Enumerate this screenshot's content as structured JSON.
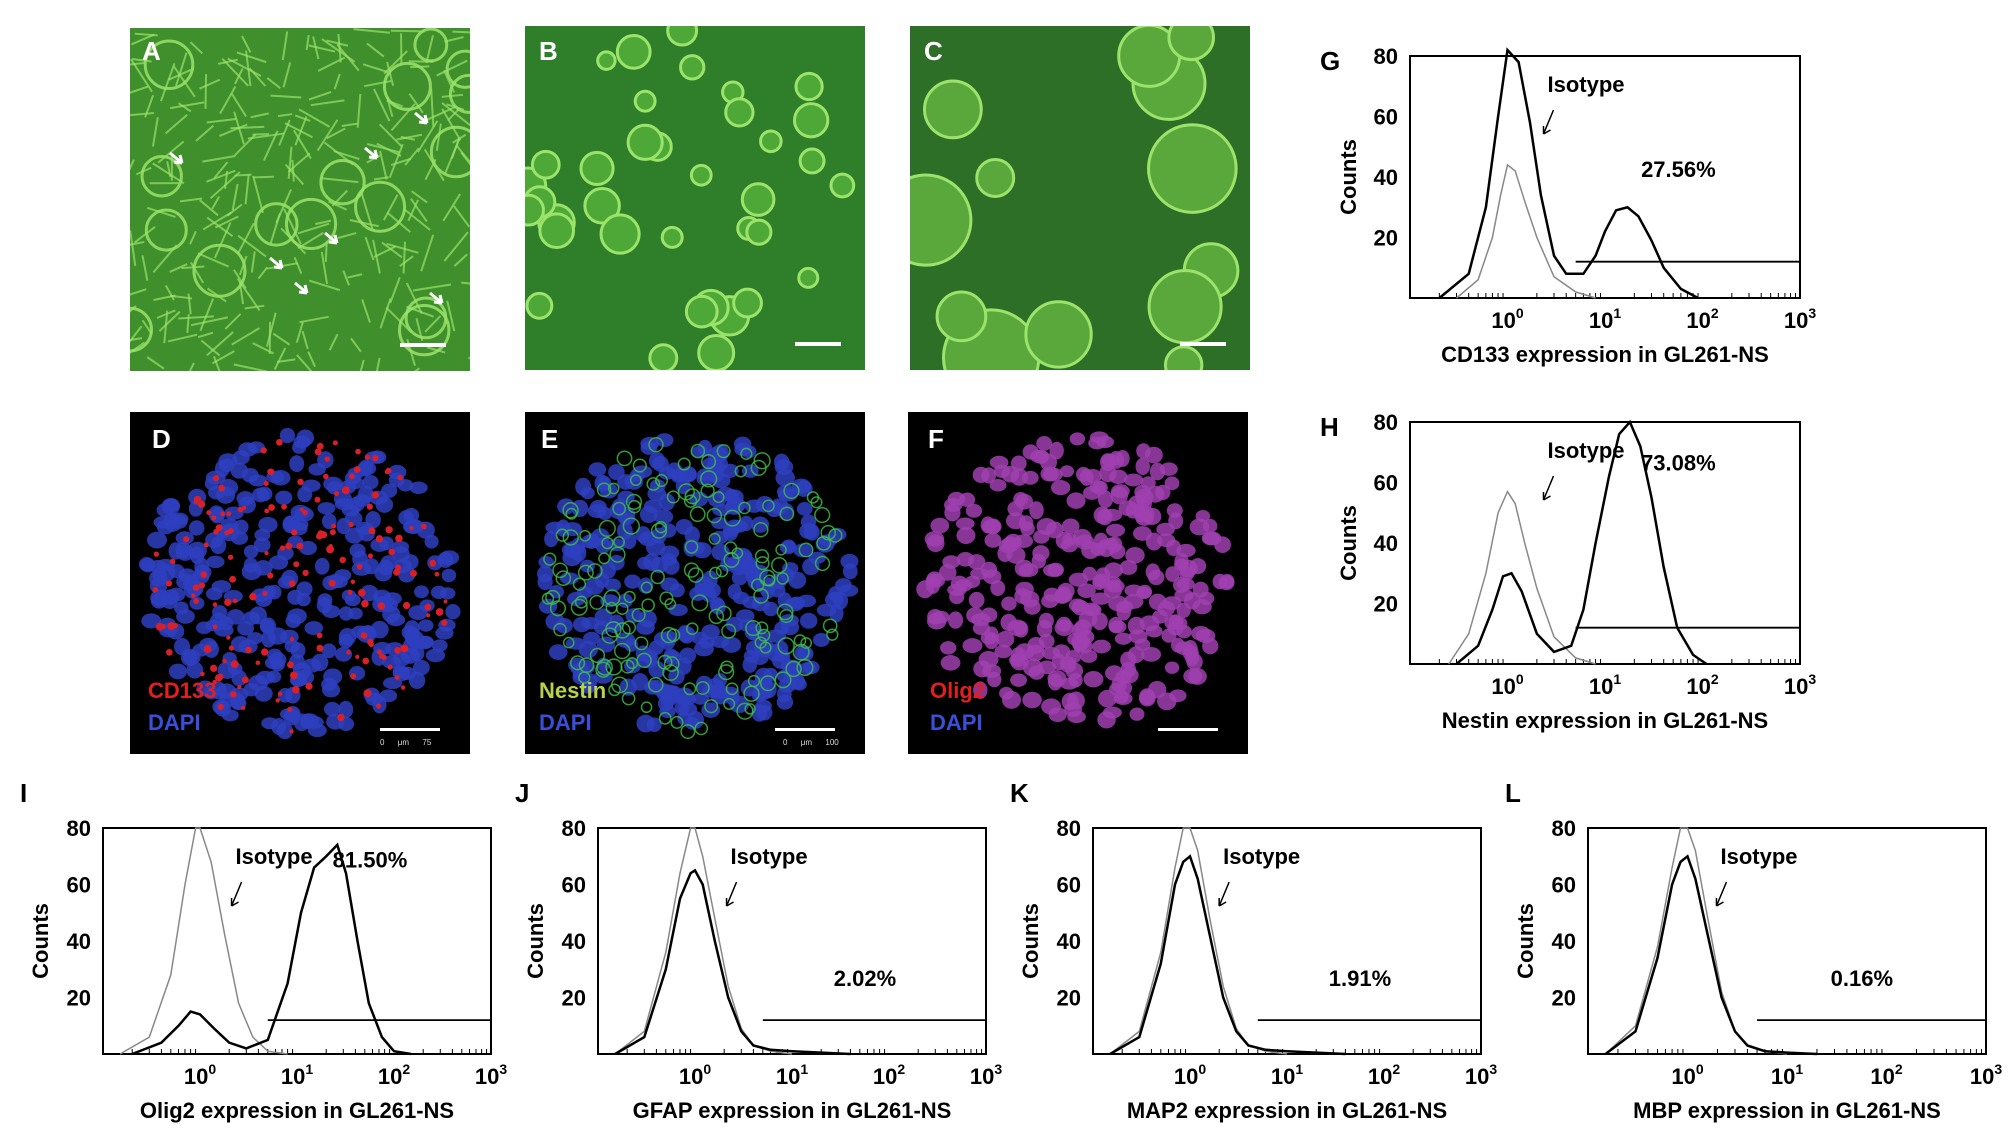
{
  "figure": {
    "micro_panels": [
      {
        "id": "A",
        "label": "A",
        "kind": "phase",
        "bg": "#3f8f2c",
        "stains": []
      },
      {
        "id": "B",
        "label": "B",
        "kind": "phase",
        "bg": "#2f7f2a",
        "stains": []
      },
      {
        "id": "C",
        "label": "C",
        "kind": "phase",
        "bg": "#2e6f27",
        "stains": []
      },
      {
        "id": "D",
        "label": "D",
        "kind": "fluor",
        "bg": "#000000",
        "stains": [
          {
            "text": "CD133",
            "color": "#e02020"
          },
          {
            "text": "DAPI",
            "color": "#3a4fd8"
          }
        ],
        "scale_text": "0      μm      75"
      },
      {
        "id": "E",
        "label": "E",
        "kind": "fluor",
        "bg": "#000000",
        "stains": [
          {
            "text": "Nestin",
            "color": "#b9d04a"
          },
          {
            "text": "DAPI",
            "color": "#3a4fd8"
          }
        ],
        "scale_text": "0      μm      100"
      },
      {
        "id": "F",
        "label": "F",
        "kind": "fluor",
        "bg": "#000000",
        "stains": [
          {
            "text": "Olig2",
            "color": "#e02020"
          },
          {
            "text": "DAPI",
            "color": "#3a4fd8"
          }
        ]
      }
    ],
    "colors": {
      "phase_cell": "#9be36a",
      "dapi": "#2e3fc0",
      "cd133": "#d8202a",
      "nestin": "#3fc04a",
      "olig2": "#a040b0",
      "marker_line": "#000000",
      "isotype_line": "#888888"
    }
  },
  "chart_data": [
    {
      "id": "G",
      "label": "G",
      "type": "line",
      "xlabel": "CD133 expression in GL261-NS",
      "ylabel": "Counts",
      "x_scale": "log",
      "xlim": [
        0.1,
        1000
      ],
      "ylim": [
        0,
        80
      ],
      "yticks": [
        "20",
        "40",
        "60",
        "80"
      ],
      "xtick_bases": [
        "10",
        "10",
        "10",
        "10"
      ],
      "xtick_exps": [
        "0",
        "1",
        "2",
        "3"
      ],
      "annotation": "Isotype",
      "percent": "27.56%",
      "gate": [
        5,
        1000
      ],
      "gate_y": 12,
      "isotype": {
        "x": [
          0.3,
          0.5,
          0.7,
          0.85,
          1.0,
          1.2,
          1.5,
          2.0,
          3.0,
          5.0,
          8.0
        ],
        "y": [
          0,
          6,
          20,
          34,
          44,
          42,
          32,
          20,
          7,
          2,
          0
        ]
      },
      "sample": {
        "x": [
          0.2,
          0.4,
          0.6,
          0.8,
          1.0,
          1.3,
          1.7,
          2.2,
          3.0,
          4.0,
          6.0,
          8.0,
          10,
          13,
          17,
          22,
          30,
          40,
          60,
          90
        ],
        "y": [
          0,
          8,
          30,
          60,
          82,
          78,
          58,
          34,
          14,
          8,
          8,
          14,
          22,
          29,
          30,
          27,
          19,
          10,
          3,
          0
        ]
      }
    },
    {
      "id": "H",
      "label": "H",
      "type": "line",
      "xlabel": "Nestin expression in GL261-NS",
      "ylabel": "Counts",
      "x_scale": "log",
      "xlim": [
        0.1,
        1000
      ],
      "ylim": [
        0,
        80
      ],
      "yticks": [
        "20",
        "40",
        "60",
        "80"
      ],
      "xtick_bases": [
        "10",
        "10",
        "10",
        "10"
      ],
      "xtick_exps": [
        "0",
        "1",
        "2",
        "3"
      ],
      "annotation": "Isotype",
      "percent": "73.08%",
      "gate": [
        5,
        1000
      ],
      "gate_y": 12,
      "isotype": {
        "x": [
          0.25,
          0.4,
          0.6,
          0.8,
          1.0,
          1.2,
          1.5,
          2.0,
          3.0,
          5.0,
          8.0
        ],
        "y": [
          0,
          10,
          30,
          50,
          57,
          53,
          40,
          25,
          9,
          2,
          0
        ]
      },
      "sample": {
        "x": [
          0.3,
          0.5,
          0.7,
          0.9,
          1.1,
          1.4,
          2.0,
          3.0,
          4.5,
          6.0,
          8.0,
          11,
          14,
          18,
          23,
          30,
          40,
          55,
          80,
          110
        ],
        "y": [
          0,
          6,
          18,
          29,
          30,
          24,
          10,
          4,
          6,
          18,
          40,
          62,
          76,
          80,
          72,
          55,
          32,
          12,
          3,
          0
        ]
      }
    },
    {
      "id": "I",
      "label": "I",
      "type": "line",
      "xlabel": "Olig2 expression in GL261-NS",
      "ylabel": "Counts",
      "x_scale": "log",
      "xlim": [
        0.1,
        1000
      ],
      "ylim": [
        0,
        80
      ],
      "yticks": [
        "20",
        "40",
        "60",
        "80"
      ],
      "xtick_bases": [
        "10",
        "10",
        "10",
        "10"
      ],
      "xtick_exps": [
        "0",
        "1",
        "2",
        "3"
      ],
      "annotation": "Isotype",
      "percent": "81.50%",
      "gate": [
        5,
        1000
      ],
      "gate_y": 12,
      "isotype": {
        "x": [
          0.15,
          0.3,
          0.5,
          0.7,
          0.9,
          1.0,
          1.3,
          1.8,
          2.5,
          3.5,
          5.0,
          8.0
        ],
        "y": [
          0,
          6,
          28,
          60,
          80,
          80,
          68,
          42,
          18,
          6,
          1,
          0
        ]
      },
      "sample": {
        "x": [
          0.2,
          0.4,
          0.6,
          0.8,
          1.0,
          1.4,
          2.0,
          3.0,
          5.0,
          8.0,
          11,
          15,
          20,
          26,
          32,
          42,
          55,
          75,
          100,
          150
        ],
        "y": [
          0,
          4,
          10,
          15,
          14,
          9,
          4,
          2,
          5,
          25,
          50,
          66,
          70,
          74,
          64,
          40,
          18,
          6,
          1,
          0
        ]
      }
    },
    {
      "id": "J",
      "label": "J",
      "type": "line",
      "xlabel": "GFAP expression in GL261-NS",
      "ylabel": "Counts",
      "x_scale": "log",
      "xlim": [
        0.1,
        1000
      ],
      "ylim": [
        0,
        80
      ],
      "yticks": [
        "20",
        "40",
        "60",
        "80"
      ],
      "xtick_bases": [
        "10",
        "10",
        "10",
        "10"
      ],
      "xtick_exps": [
        "0",
        "1",
        "2",
        "3"
      ],
      "annotation": "Isotype",
      "percent": "2.02%",
      "gate": [
        5,
        1000
      ],
      "gate_y": 12,
      "isotype": {
        "x": [
          0.15,
          0.3,
          0.5,
          0.7,
          0.9,
          1.0,
          1.2,
          1.6,
          2.2,
          3.0,
          4.0,
          6.0,
          10
        ],
        "y": [
          0,
          8,
          36,
          64,
          80,
          80,
          70,
          48,
          24,
          9,
          3,
          1,
          0
        ]
      },
      "sample": {
        "x": [
          0.15,
          0.3,
          0.5,
          0.7,
          0.9,
          1.0,
          1.2,
          1.6,
          2.2,
          3.0,
          4.0,
          6.0,
          10,
          20,
          40
        ],
        "y": [
          0,
          6,
          30,
          55,
          64,
          65,
          60,
          40,
          20,
          8,
          3,
          1.5,
          1,
          0.5,
          0
        ]
      }
    },
    {
      "id": "K",
      "label": "K",
      "type": "line",
      "xlabel": "MAP2 expression in GL261-NS",
      "ylabel": "Counts",
      "x_scale": "log",
      "xlim": [
        0.1,
        1000
      ],
      "ylim": [
        0,
        80
      ],
      "yticks": [
        "20",
        "40",
        "60",
        "80"
      ],
      "xtick_bases": [
        "10",
        "10",
        "10",
        "10"
      ],
      "xtick_exps": [
        "0",
        "1",
        "2",
        "3"
      ],
      "annotation": "Isotype",
      "percent": "1.91%",
      "gate": [
        5,
        1000
      ],
      "gate_y": 12,
      "isotype": {
        "x": [
          0.15,
          0.3,
          0.5,
          0.7,
          0.85,
          1.0,
          1.2,
          1.6,
          2.2,
          3.0,
          4.0,
          6.0,
          10
        ],
        "y": [
          0,
          8,
          36,
          66,
          80,
          80,
          72,
          48,
          24,
          9,
          3,
          1,
          0
        ]
      },
      "sample": {
        "x": [
          0.15,
          0.3,
          0.5,
          0.7,
          0.85,
          1.0,
          1.2,
          1.6,
          2.2,
          3.0,
          4.0,
          6.0,
          10,
          20,
          40
        ],
        "y": [
          0,
          6,
          32,
          60,
          68,
          70,
          62,
          42,
          20,
          8,
          3,
          1.5,
          1,
          0.5,
          0
        ]
      }
    },
    {
      "id": "L",
      "label": "L",
      "type": "line",
      "xlabel": "MBP expression in GL261-NS",
      "ylabel": "Counts",
      "x_scale": "log",
      "xlim": [
        0.1,
        1000
      ],
      "ylim": [
        0,
        80
      ],
      "yticks": [
        "20",
        "40",
        "60",
        "80"
      ],
      "xtick_bases": [
        "10",
        "10",
        "10",
        "10"
      ],
      "xtick_exps": [
        "0",
        "1",
        "2",
        "3"
      ],
      "annotation": "Isotype",
      "percent": "0.16%",
      "gate": [
        5,
        1000
      ],
      "gate_y": 12,
      "isotype": {
        "x": [
          0.15,
          0.3,
          0.5,
          0.7,
          0.85,
          1.0,
          1.2,
          1.6,
          2.2,
          3.0,
          4.0,
          6.0,
          10
        ],
        "y": [
          0,
          10,
          38,
          66,
          80,
          80,
          72,
          48,
          22,
          8,
          3,
          1,
          0
        ]
      },
      "sample": {
        "x": [
          0.15,
          0.3,
          0.5,
          0.7,
          0.85,
          1.0,
          1.2,
          1.6,
          2.2,
          3.0,
          4.0,
          6.0,
          10,
          20
        ],
        "y": [
          0,
          8,
          34,
          60,
          68,
          70,
          62,
          42,
          20,
          8,
          3,
          1,
          0.5,
          0
        ]
      }
    }
  ]
}
